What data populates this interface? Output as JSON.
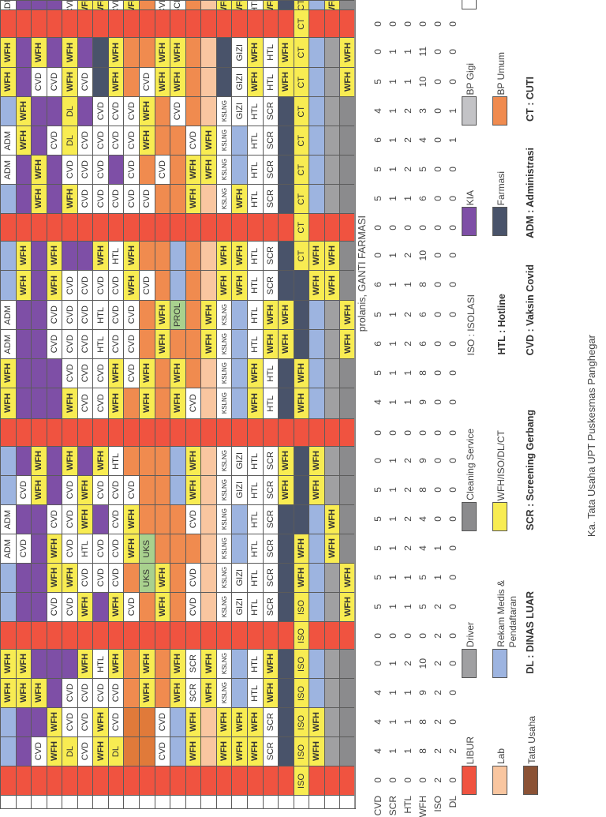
{
  "palette": {
    "R": "#f05340",
    "P": "#7e4fa6",
    "D": "#49536a",
    "O": "#f08b4f",
    "o": "#e07a3a",
    "L": "#f9c6a0",
    "B": "#9db4e0",
    "G": "#a0a0a2",
    "g": "#8b8b8d",
    "W": "#ffffff",
    "Y": "#f8ec52",
    "E": "#a9d18e",
    "T": "#8b5235",
    "S": "#c3c3c6"
  },
  "grid": {
    "rows": [
      {
        "fill": "WPPPWYYWYOWWOLYYWYDYBYg",
        "text": [
          "ADM",
          "",
          "",
          "",
          "CVD",
          "WFH",
          "WFH",
          "CVD",
          "WFH",
          "",
          "CVD",
          "SCR",
          "",
          "",
          "WFH",
          "WFH",
          "HTL",
          "WFH",
          "",
          "CT",
          "",
          "WFH",
          ""
        ]
      },
      {
        "fill": "RRRRRRRRRRRRRRRRRRRYRRR",
        "text": [
          "",
          "",
          "",
          "",
          "",
          "",
          "",
          "",
          "",
          "",
          "",
          "",
          "",
          "",
          "",
          "",
          "",
          "",
          "",
          "CT",
          "",
          "",
          ""
        ]
      },
      {
        "fill": "YPYPYPDYOOYYOLDWYWYYBGY",
        "text": [
          "WFH",
          "",
          "WFH",
          "",
          "WFH",
          "",
          "",
          "WFH",
          "",
          "",
          "WFH",
          "WFH",
          "",
          "",
          "",
          "GIZI",
          "WFH",
          "HTL",
          "WFH",
          "CT",
          "",
          "",
          "WFH"
        ]
      },
      {
        "fill": "YPWWYWDYOWYYOLDWYWYYBGY",
        "text": [
          "WFH",
          "",
          "CVD",
          "CVD",
          "WFH",
          "CVD",
          "",
          "WFH",
          "",
          "CVD",
          "WFH",
          "WFH",
          "",
          "",
          "",
          "GIZI",
          "WFH",
          "HTL",
          "WFH",
          "CT",
          "",
          "",
          "WFH"
        ]
      },
      {
        "fill": "BYPPYPWWWYOWOLWWWWDYBGg",
        "text": [
          "",
          "WFH",
          "",
          "",
          "DL",
          "",
          "CVD",
          "CVD",
          "CVD",
          "WFH",
          "",
          "CVD",
          "",
          "",
          "KSLNG",
          "GIZI",
          "HTL",
          "SCR",
          "",
          "CT",
          "",
          "",
          ""
        ]
      },
      {
        "fill": "WYPWYWWWWYOOWYWBWWDYBGg",
        "text": [
          "ADM",
          "WFH",
          "",
          "CVD",
          "DL",
          "CVD",
          "CVD",
          "CVD",
          "CVD",
          "WFH",
          "",
          "",
          "CVD",
          "WFH",
          "KSLNG",
          "",
          "HTL",
          "SCR",
          "",
          "CT",
          "",
          "",
          ""
        ]
      },
      {
        "fill": "WPYPWWWPWOWOYYWBWWDYBGg",
        "text": [
          "ADM",
          "",
          "WFH",
          "",
          "CVD",
          "CVD",
          "CVD",
          "",
          "CVD",
          "",
          "CVD",
          "",
          "WFH",
          "WFH",
          "KSLNG",
          "",
          "HTL",
          "SCR",
          "",
          "CT",
          "",
          "",
          ""
        ]
      },
      {
        "fill": "BPYPYWWWWWOOYLWYWWDYBGg",
        "text": [
          "",
          "",
          "WFH",
          "",
          "WFH",
          "CVD",
          "CVD",
          "CVD",
          "CVD",
          "CVD",
          "",
          "",
          "WFH",
          "",
          "KSLNG",
          "WFH",
          "HTL",
          "SCR",
          "",
          "CT",
          "",
          "",
          ""
        ]
      },
      {
        "fill": "RRRRRRRRRRRRRRRRRRRYRRR",
        "text": [
          "",
          "",
          "",
          "",
          "",
          "",
          "",
          "",
          "",
          "",
          "",
          "",
          "",
          "",
          "",
          "",
          "",
          "",
          "",
          "CT",
          "",
          "",
          ""
        ]
      },
      {
        "fill": "BYPYPPYWYOOBOLYYWWDYYYg",
        "text": [
          "",
          "WFH",
          "",
          "WFH",
          "",
          "",
          "WFH",
          "HTL",
          "WFH",
          "",
          "",
          "",
          "",
          "",
          "WFH",
          "WFH",
          "HTL",
          "SCR",
          "",
          "CT",
          "WFH",
          "WFH",
          ""
        ]
      },
      {
        "fill": "BYPYWWWWYWOBOLYYWWDDYYg",
        "text": [
          "",
          "WFH",
          "",
          "WFH",
          "CVD",
          "CVD",
          "CVD",
          "CVD",
          "WFH",
          "CVD",
          "",
          "",
          "",
          "",
          "WFH",
          "WFH",
          "HTL",
          "SCR",
          "",
          "",
          "WFH",
          "WFH",
          ""
        ]
      },
      {
        "fill": "WPPWWWWWWOYEOYWBWYYDBGY",
        "text": [
          "ADM",
          "",
          "",
          "CVD",
          "CVD",
          "CVD",
          "HTL",
          "CVD",
          "CVD",
          "",
          "WFH",
          "PROL",
          "",
          "WFH",
          "KSLNG",
          "",
          "HTL",
          "WFH",
          "WFH",
          "",
          "",
          "",
          "WFH"
        ]
      },
      {
        "fill": "WPPWWWWWWOYOOYWBWYYDBGY",
        "text": [
          "ADM",
          "",
          "",
          "CVD",
          "CVD",
          "CVD",
          "HTL",
          "CVD",
          "CVD",
          "",
          "WFH",
          "",
          "",
          "WFH",
          "KSLNG",
          "",
          "HTL",
          "WFH",
          "WFH",
          "",
          "",
          "",
          "WFH"
        ]
      },
      {
        "fill": "YPPPWWWYWYOYOLWBYWDYBGg",
        "text": [
          "WFH",
          "",
          "",
          "",
          "CVD",
          "CVD",
          "CVD",
          "WFH",
          "CVD",
          "WFH",
          "",
          "WFH",
          "",
          "",
          "KSLNG",
          "",
          "WFH",
          "HTL",
          "",
          "WFH",
          "",
          "",
          ""
        ]
      },
      {
        "fill": "YPPPYWWYOYOYWLWBYWDYBGg",
        "text": [
          "WFH",
          "",
          "",
          "",
          "WFH",
          "CVD",
          "CVD",
          "WFH",
          "",
          "WFH",
          "",
          "WFH",
          "CVD",
          "",
          "KSLNG",
          "",
          "WFH",
          "HTL",
          "",
          "WFH",
          "",
          "",
          ""
        ]
      },
      {
        "fill": "RRRRRRRRRRRRRRRRRRRRRRR",
        "text": [
          "",
          "",
          "",
          "",
          "",
          "",
          "",
          "",
          "",
          "",
          "",
          "",
          "",
          "",
          "",
          "",
          "",
          "",
          "",
          "",
          "",
          "",
          ""
        ]
      },
      {
        "fill": "BPYPYPYWOOOBYLWWWWYDYGg",
        "text": [
          "",
          "",
          "WFH",
          "",
          "WFH",
          "",
          "WFH",
          "HTL",
          "",
          "",
          "",
          "",
          "WFH",
          "",
          "KSLNG",
          "GIZI",
          "HTL",
          "SCR",
          "WFH",
          "",
          "WFH",
          "",
          ""
        ]
      },
      {
        "fill": "BWYPWYWWWOOBYLWWWWYDYGg",
        "text": [
          "",
          "CVD",
          "WFH",
          "",
          "CVD",
          "WFH",
          "CVD",
          "CVD",
          "CVD",
          "",
          "",
          "",
          "WFH",
          "",
          "KSLNG",
          "GIZI",
          "HTL",
          "SCR",
          "WFH",
          "",
          "WFH",
          "",
          ""
        ]
      },
      {
        "fill": "WPPWWYPWYOOOWLWBWWDDBYg",
        "text": [
          "ADM",
          "",
          "",
          "CVD",
          "CVD",
          "WFH",
          "",
          "CVD",
          "WFH",
          "",
          "",
          "",
          "CVD",
          "",
          "KSLNG",
          "",
          "HTL",
          "SCR",
          "",
          "",
          "",
          "WFH",
          ""
        ]
      },
      {
        "fill": "WWPYWWWWYEOOOLWBWWDYBYg",
        "text": [
          "ADM",
          "CVD",
          "",
          "WFH",
          "CVD",
          "HTL",
          "CVD",
          "CVD",
          "WFH",
          "UKS",
          "",
          "",
          "",
          "",
          "KSLNG",
          "",
          "HTL",
          "SCR",
          "",
          "WFH",
          "",
          "WFH",
          ""
        ]
      },
      {
        "fill": "BPPYYWWWOEYOWLWWWWDYBGY",
        "text": [
          "",
          "",
          "",
          "WFH",
          "WFH",
          "CVD",
          "CVD",
          "CVD",
          "",
          "UKS",
          "WFH",
          "",
          "CVD",
          "",
          "KSLNG",
          "GIZI",
          "HTL",
          "SCR",
          "",
          "WFH",
          "",
          "",
          "WFH"
        ]
      },
      {
        "fill": "BPPWWYPYWOYOWLWWWWDYBGY",
        "text": [
          "",
          "",
          "",
          "CVD",
          "CVD",
          "WFH",
          "",
          "WFH",
          "CVD",
          "",
          "WFH",
          "",
          "CVD",
          "",
          "KSLNG",
          "GIZI",
          "HTL",
          "SCR",
          "",
          "ISO",
          "",
          "",
          "WFH"
        ]
      },
      {
        "fill": "RRRRRRRRRRRRRRRRRRRYRRR",
        "text": [
          "",
          "",
          "",
          "",
          "",
          "",
          "",
          "",
          "",
          "",
          "",
          "",
          "",
          "",
          "",
          "",
          "",
          "",
          "",
          "ISO",
          "",
          "",
          ""
        ]
      },
      {
        "fill": "YYPPPYWYOYOYWYWBWYDYBGg",
        "text": [
          "WFH",
          "WFH",
          "",
          "",
          "",
          "WFH",
          "HTL",
          "WFH",
          "",
          "WFH",
          "",
          "WFH",
          "SCR",
          "WFH",
          "KSLNG",
          "",
          "HTL",
          "WFH",
          "",
          "ISO",
          "",
          "",
          ""
        ]
      },
      {
        "fill": "YYYPWWWWOYOYWYWBWYDYBGg",
        "text": [
          "WFH",
          "WFH",
          "WFH",
          "",
          "CVD",
          "CVD",
          "CVD",
          "CVD",
          "",
          "WFH",
          "",
          "WFH",
          "SCR",
          "WFH",
          "KSLNG",
          "",
          "HTL",
          "WFH",
          "",
          "ISO",
          "",
          "",
          ""
        ]
      },
      {
        "fill": "BPPYWWYWooWBYLYYYWDYYGg",
        "text": [
          "",
          "",
          "",
          "WFH",
          "CVD",
          "CVD",
          "WFH",
          "CVD",
          "",
          "",
          "CVD",
          "",
          "WFH",
          "",
          "WFH",
          "WFH",
          "WFH",
          "SCR",
          "",
          "ISO",
          "WFH",
          "",
          ""
        ]
      },
      {
        "fill": "BPWYYWYYooWBYLYYYWDYYGg",
        "text": [
          "",
          "",
          "CVD",
          "WFH",
          "DL",
          "CVD",
          "WFH",
          "DL",
          "",
          "",
          "CVD",
          "",
          "WFH",
          "",
          "WFH",
          "WFH",
          "WFH",
          "SCR",
          "",
          "ISO",
          "WFH",
          "",
          ""
        ]
      },
      {
        "fill": "RRRRRRRRRRRRRRRRRRRYRRR",
        "text": [
          "",
          "",
          "",
          "",
          "",
          "",
          "",
          "",
          "",
          "",
          "",
          "",
          "",
          "",
          "",
          "",
          "",
          "",
          "",
          "ISO",
          "",
          "",
          ""
        ]
      },
      {
        "fill": "WWWWWWWWWWWWWWWWWWWWWWW",
        "text": [
          "",
          "",
          "",
          "",
          "",
          "",
          "",
          "",
          "",
          "",
          "",
          "",
          "",
          "",
          "",
          "",
          "",
          "",
          "",
          "",
          "",
          "",
          ""
        ]
      }
    ]
  },
  "summary": {
    "labels": [
      "CVD",
      "SCR",
      "HTL",
      "WFH",
      "ISO",
      "DL"
    ],
    "note": "prolanis, GANTI FARMASI",
    "counts": [
      null,
      [
        0,
        0,
        0,
        0,
        0,
        0
      ],
      [
        0,
        1,
        1,
        11,
        0,
        0
      ],
      [
        5,
        1,
        1,
        10,
        0,
        0
      ],
      [
        4,
        1,
        2,
        3,
        0,
        1
      ],
      [
        6,
        1,
        2,
        4,
        0,
        1
      ],
      [
        5,
        1,
        2,
        5,
        0,
        0
      ],
      [
        5,
        1,
        1,
        6,
        0,
        0
      ],
      [
        0,
        0,
        0,
        0,
        0,
        0
      ],
      [
        0,
        1,
        2,
        10,
        0,
        0
      ],
      [
        6,
        1,
        1,
        8,
        0,
        0
      ],
      [
        5,
        1,
        2,
        6,
        0,
        0
      ],
      [
        6,
        1,
        2,
        6,
        0,
        0
      ],
      [
        5,
        1,
        1,
        8,
        0,
        0
      ],
      [
        4,
        1,
        1,
        9,
        0,
        0
      ],
      [
        0,
        0,
        0,
        0,
        0,
        0
      ],
      [
        0,
        1,
        2,
        9,
        0,
        0
      ],
      [
        5,
        1,
        2,
        8,
        0,
        0
      ],
      [
        5,
        1,
        2,
        4,
        0,
        0
      ],
      [
        5,
        1,
        2,
        4,
        1,
        0
      ],
      [
        5,
        1,
        1,
        5,
        1,
        0
      ],
      [
        5,
        1,
        1,
        5,
        2,
        0
      ],
      [
        0,
        0,
        0,
        0,
        2,
        0
      ],
      [
        0,
        1,
        2,
        10,
        2,
        0
      ],
      [
        4,
        1,
        1,
        9,
        2,
        0
      ],
      [
        4,
        1,
        1,
        8,
        2,
        0
      ],
      [
        4,
        1,
        1,
        8,
        2,
        2
      ],
      [
        0,
        0,
        0,
        0,
        2,
        0
      ]
    ]
  },
  "legend": {
    "items": [
      {
        "label": "LIBUR",
        "color": "#f05340"
      },
      {
        "label": "Lab",
        "color": "#f9c6a0"
      },
      {
        "label": "Tata Usaha",
        "color": "#8b5235"
      },
      {
        "label": "Driver",
        "color": "#a0a0a2"
      },
      {
        "label": "Rekam Medis &",
        "label2": "Pendaftaran",
        "color": "#9db4e0"
      },
      {
        "label": "Cleaning Service",
        "color": "#8b8b8d"
      },
      {
        "label": "WFH/ISO/DL/CT",
        "color": "#f8ec52"
      },
      {
        "label": "KIA",
        "color": "#7e4fa6"
      },
      {
        "label": "Farmasi",
        "color": "#49536a"
      },
      {
        "label": "BP Gigi",
        "color": "#c3c3c6"
      },
      {
        "label": "BP Umum",
        "color": "#f08b4f"
      }
    ],
    "abbreviations": {
      "dl": "DL : DINAS LUAR",
      "scr": "SCR : Screening Gerbang",
      "iso": "ISO : ISOLASI",
      "htl": "HTL : Hotline",
      "cvd": "CVD : Vaksin Covid",
      "adm": "ADM : Administrasi",
      "ct": "CT : CUTI"
    }
  },
  "signature": {
    "title": "Ka. Tata Usaha UPT Puskesmas Panghegar"
  }
}
